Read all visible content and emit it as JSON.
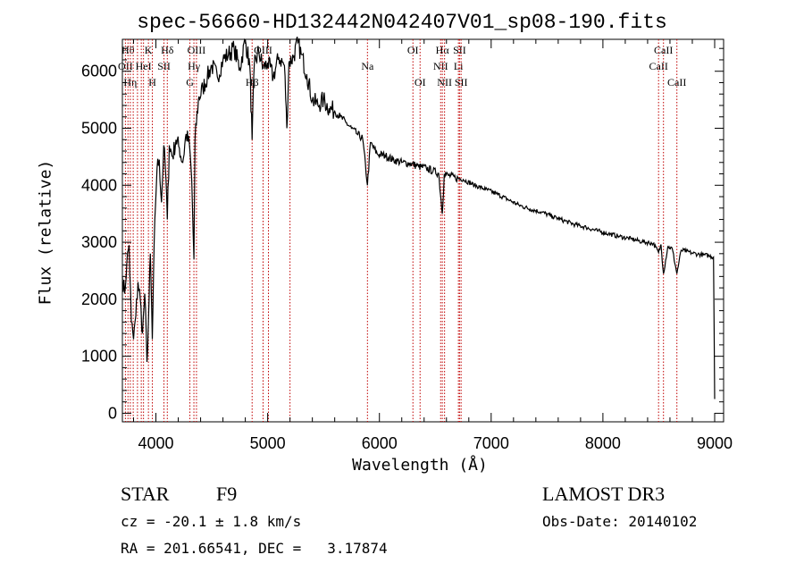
{
  "chart_data": {
    "type": "line",
    "title": "spec-56660-HD132442N042407V01_sp08-190.fits",
    "xlabel": "Wavelength (Å)",
    "ylabel": "Flux (relative)",
    "xlim": [
      3700,
      9080
    ],
    "ylim": [
      -150,
      6560
    ],
    "xticks": [
      4000,
      5000,
      6000,
      7000,
      8000,
      9000
    ],
    "xtick_labels": [
      "4000",
      "5000",
      "6000",
      "7000",
      "8000",
      "9000"
    ],
    "yticks": [
      0,
      1000,
      2000,
      3000,
      4000,
      5000,
      6000
    ],
    "ytick_labels": [
      "0",
      "1000",
      "2000",
      "3000",
      "4000",
      "5000",
      "6000"
    ],
    "series": [
      {
        "name": "spectrum",
        "x": [
          3700,
          3720,
          3740,
          3760,
          3780,
          3800,
          3820,
          3840,
          3860,
          3880,
          3900,
          3920,
          3933,
          3950,
          3968,
          3990,
          4010,
          4030,
          4050,
          4070,
          4090,
          4102,
          4120,
          4150,
          4180,
          4210,
          4240,
          4270,
          4300,
          4320,
          4340,
          4350,
          4380,
          4420,
          4460,
          4500,
          4550,
          4600,
          4650,
          4700,
          4750,
          4800,
          4840,
          4861,
          4880,
          4920,
          4960,
          5000,
          5050,
          5100,
          5150,
          5172,
          5190,
          5230,
          5270,
          5300,
          5350,
          5400,
          5450,
          5500,
          5550,
          5600,
          5650,
          5700,
          5750,
          5800,
          5850,
          5893,
          5920,
          5980,
          6050,
          6120,
          6200,
          6280,
          6350,
          6420,
          6480,
          6530,
          6563,
          6580,
          6620,
          6680,
          6750,
          6850,
          6950,
          7050,
          7150,
          7250,
          7350,
          7450,
          7550,
          7650,
          7750,
          7850,
          7950,
          8050,
          8150,
          8250,
          8350,
          8450,
          8498,
          8520,
          8542,
          8580,
          8620,
          8662,
          8700,
          8750,
          8800,
          8850,
          8900,
          8950,
          8990,
          9000
        ],
        "y": [
          2400,
          2100,
          2650,
          2950,
          1600,
          1300,
          1700,
          2300,
          2000,
          1400,
          2100,
          900,
          1600,
          2800,
          1300,
          3400,
          4300,
          4450,
          3700,
          4700,
          4100,
          3400,
          4700,
          4500,
          4800,
          4650,
          4400,
          4900,
          4700,
          4100,
          2700,
          4800,
          5500,
          5700,
          5900,
          6100,
          5900,
          6200,
          6300,
          6400,
          6050,
          6550,
          6100,
          4800,
          6100,
          6350,
          6050,
          6150,
          5900,
          6250,
          6100,
          5000,
          6150,
          6250,
          6500,
          6300,
          5950,
          5500,
          5400,
          5500,
          5350,
          5300,
          5200,
          5100,
          5000,
          4900,
          4820,
          4000,
          4750,
          4550,
          4520,
          4450,
          4400,
          4380,
          4330,
          4300,
          4250,
          4210,
          3500,
          4200,
          4170,
          4130,
          4100,
          4000,
          3930,
          3850,
          3750,
          3650,
          3580,
          3530,
          3450,
          3380,
          3310,
          3260,
          3200,
          3150,
          3100,
          3060,
          3010,
          2980,
          2820,
          2960,
          2450,
          2920,
          2890,
          2450,
          2860,
          2840,
          2810,
          2790,
          2780,
          2760,
          2740,
          250
        ]
      }
    ],
    "spectral_lines": [
      {
        "x": 3727,
        "label": "OII",
        "row": 2
      },
      {
        "x": 3750,
        "label": "Hθ",
        "row": 1
      },
      {
        "x": 3771,
        "label": "Hη",
        "row": 3
      },
      {
        "x": 3797,
        "label": "",
        "row": 0
      },
      {
        "x": 3835,
        "label": "",
        "row": 0
      },
      {
        "x": 3869,
        "label": "",
        "row": 0
      },
      {
        "x": 3889,
        "label": "HeI",
        "row": 2
      },
      {
        "x": 3933,
        "label": "K",
        "row": 1
      },
      {
        "x": 3968,
        "label": "H",
        "row": 3
      },
      {
        "x": 4072,
        "label": "SII",
        "row": 2
      },
      {
        "x": 4102,
        "label": "Hδ",
        "row": 1
      },
      {
        "x": 4304,
        "label": "G",
        "row": 3
      },
      {
        "x": 4340,
        "label": "Hγ",
        "row": 2
      },
      {
        "x": 4363,
        "label": "OIII",
        "row": 1
      },
      {
        "x": 4861,
        "label": "Hβ",
        "row": 3
      },
      {
        "x": 4959,
        "label": "OIII",
        "row": 1
      },
      {
        "x": 5007,
        "label": "",
        "row": 0
      },
      {
        "x": 5200,
        "label": "",
        "row": 0
      },
      {
        "x": 5893,
        "label": "Na",
        "row": 2
      },
      {
        "x": 6300,
        "label": "OI",
        "row": 1
      },
      {
        "x": 6364,
        "label": "OI",
        "row": 3
      },
      {
        "x": 6548,
        "label": "NII",
        "row": 2
      },
      {
        "x": 6563,
        "label": "Hα",
        "row": 1
      },
      {
        "x": 6583,
        "label": "NII",
        "row": 3
      },
      {
        "x": 6707,
        "label": "Li",
        "row": 2
      },
      {
        "x": 6717,
        "label": "SII",
        "row": 1
      },
      {
        "x": 6731,
        "label": "SII",
        "row": 3
      },
      {
        "x": 8498,
        "label": "CaII",
        "row": 2
      },
      {
        "x": 8542,
        "label": "CaII",
        "row": 1
      },
      {
        "x": 8662,
        "label": "CaII",
        "row": 3
      }
    ]
  },
  "info": {
    "object_class": "STAR",
    "subclass": "F9",
    "survey": "LAMOST DR3",
    "redshift_line": "cz = -20.1 ± 1.8 km/s",
    "obs_date": "Obs-Date: 20140102",
    "coords": "RA = 201.66541, DEC =   3.17874"
  },
  "colors": {
    "line_marker": "#c00000",
    "spectrum": "#000000",
    "axis": "#000000"
  }
}
